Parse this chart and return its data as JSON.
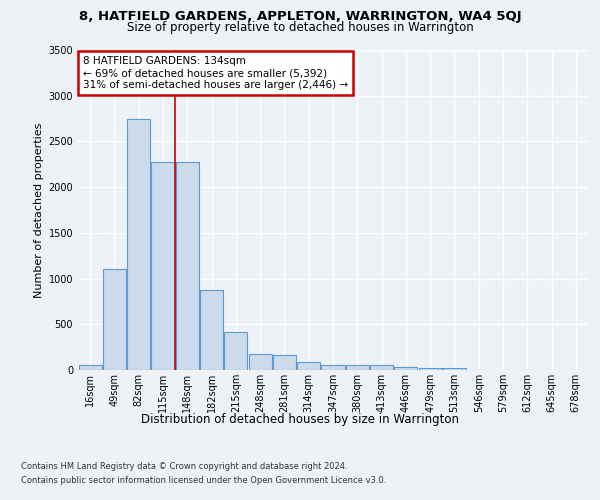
{
  "title1": "8, HATFIELD GARDENS, APPLETON, WARRINGTON, WA4 5QJ",
  "title2": "Size of property relative to detached houses in Warrington",
  "xlabel": "Distribution of detached houses by size in Warrington",
  "ylabel": "Number of detached properties",
  "bins": [
    "16sqm",
    "49sqm",
    "82sqm",
    "115sqm",
    "148sqm",
    "182sqm",
    "215sqm",
    "248sqm",
    "281sqm",
    "314sqm",
    "347sqm",
    "380sqm",
    "413sqm",
    "446sqm",
    "479sqm",
    "513sqm",
    "546sqm",
    "579sqm",
    "612sqm",
    "645sqm",
    "678sqm"
  ],
  "values": [
    50,
    1100,
    2750,
    2280,
    2280,
    870,
    420,
    175,
    160,
    90,
    60,
    50,
    50,
    35,
    25,
    20,
    5,
    3,
    2,
    1,
    0
  ],
  "bar_color": "#ccdaeb",
  "bar_edge_color": "#5b9bd5",
  "vline_color": "#cc0000",
  "vline_x": 3.5,
  "annotation_text": "8 HATFIELD GARDENS: 134sqm\n← 69% of detached houses are smaller (5,392)\n31% of semi-detached houses are larger (2,446) →",
  "annotation_box_color": "#ffffff",
  "annotation_box_edge": "#cc0000",
  "ylim": [
    0,
    3500
  ],
  "yticks": [
    0,
    500,
    1000,
    1500,
    2000,
    2500,
    3000,
    3500
  ],
  "footer1": "Contains HM Land Registry data © Crown copyright and database right 2024.",
  "footer2": "Contains public sector information licensed under the Open Government Licence v3.0.",
  "bg_color": "#eef2f7",
  "plot_bg_color": "#eef2f7",
  "grid_color": "#ffffff",
  "title1_fontsize": 9.5,
  "title2_fontsize": 8.5,
  "ylabel_fontsize": 8,
  "xlabel_fontsize": 8.5,
  "tick_fontsize": 7,
  "footer_fontsize": 6.0,
  "ann_fontsize": 7.5
}
